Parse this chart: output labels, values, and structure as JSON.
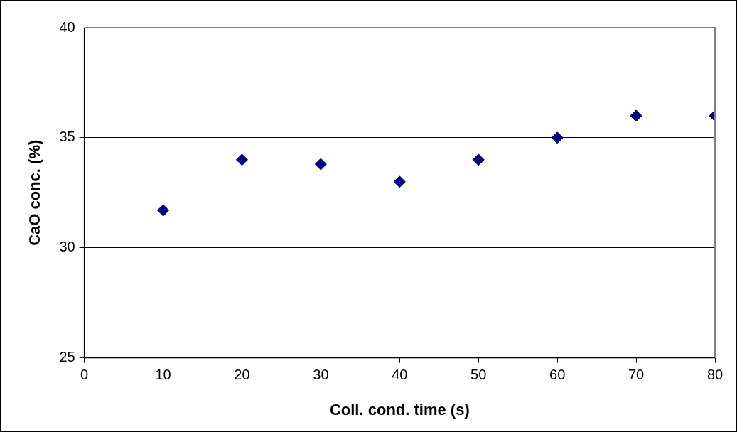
{
  "chart_data": {
    "type": "scatter",
    "xlabel": "Coll. cond. time (s)",
    "ylabel": "CaO conc. (%)",
    "x": [
      10,
      20,
      30,
      40,
      50,
      60,
      70,
      80
    ],
    "values": [
      31.7,
      34.0,
      33.8,
      33.0,
      34.0,
      35.0,
      36.0,
      36.0
    ],
    "color": "#000080",
    "marker": "diamond",
    "xlim": [
      0,
      80
    ],
    "xticks": [
      0,
      10,
      20,
      30,
      40,
      50,
      60,
      70,
      80
    ],
    "ylim": [
      25,
      40
    ],
    "yticks": [
      25,
      30,
      35,
      40
    ],
    "grid": "y"
  }
}
